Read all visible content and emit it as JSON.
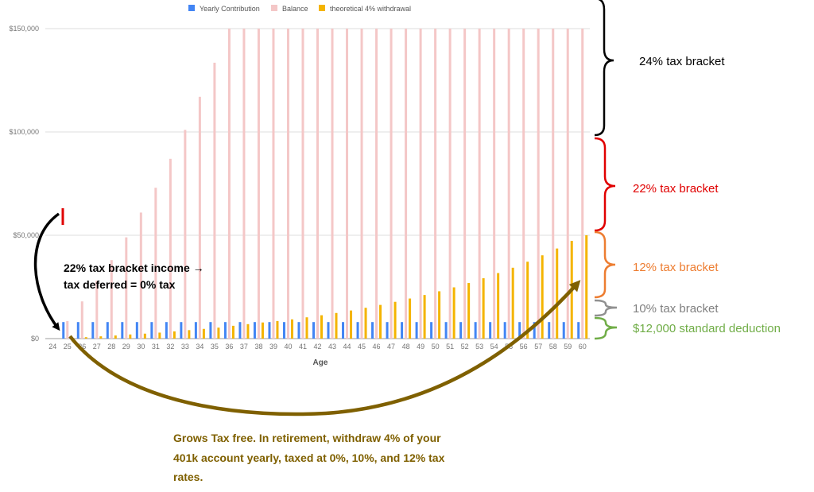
{
  "chart_data": {
    "type": "bar",
    "xlabel": "Age",
    "ylabel": "",
    "ylim": [
      0,
      150000
    ],
    "yticks": [
      0,
      50000,
      100000,
      150000
    ],
    "ytick_labels": [
      "$0",
      "$50,000",
      "$100,000",
      "$150,000"
    ],
    "grid": true,
    "legend_position": "top",
    "categories": [
      "24",
      "25",
      "26",
      "27",
      "28",
      "29",
      "30",
      "31",
      "32",
      "33",
      "34",
      "35",
      "36",
      "37",
      "38",
      "39",
      "40",
      "41",
      "42",
      "43",
      "44",
      "45",
      "46",
      "47",
      "48",
      "49",
      "50",
      "51",
      "52",
      "53",
      "54",
      "55",
      "56",
      "57",
      "58",
      "59",
      "60"
    ],
    "series": [
      {
        "name": "Yearly Contribution",
        "color": "#4285f4",
        "values": [
          0,
          8000,
          8000,
          8000,
          8000,
          8000,
          8000,
          8000,
          8000,
          8000,
          8000,
          8000,
          8000,
          8000,
          8000,
          8000,
          8000,
          8000,
          8000,
          8000,
          8000,
          8000,
          8000,
          8000,
          8000,
          8000,
          8000,
          8000,
          8000,
          8000,
          8000,
          8000,
          8000,
          8000,
          8000,
          8000,
          8000
        ]
      },
      {
        "name": "Balance",
        "color": "#f4c7c7",
        "values": [
          0,
          8500,
          18000,
          28000,
          38000,
          49000,
          61000,
          73000,
          87000,
          101000,
          117000,
          133500,
          150000,
          150000,
          150000,
          150000,
          150000,
          150000,
          150000,
          150000,
          150000,
          150000,
          150000,
          150000,
          150000,
          150000,
          150000,
          150000,
          150000,
          150000,
          150000,
          150000,
          150000,
          150000,
          150000,
          150000,
          150000
        ]
      },
      {
        "name": "theoretical 4% withdrawal",
        "color": "#f4b400",
        "values": [
          0,
          300,
          700,
          1100,
          1500,
          2000,
          2400,
          2900,
          3500,
          4100,
          4700,
          5300,
          6200,
          7000,
          7800,
          8500,
          9300,
          10300,
          11300,
          12400,
          13600,
          14900,
          16300,
          17800,
          19400,
          21100,
          22900,
          24800,
          26900,
          29200,
          31700,
          34300,
          37200,
          40300,
          43600,
          47300,
          50000
        ]
      }
    ]
  },
  "annotations": {
    "brackets": [
      {
        "label": "24% tax bracket",
        "color": "#000000"
      },
      {
        "label": "22% tax bracket",
        "color": "#e00000"
      },
      {
        "label": "12% tax bracket",
        "color": "#ed7d31"
      },
      {
        "label": "10% tax bracket",
        "color": "#808080"
      },
      {
        "label": "$12,000 standard deduction",
        "color": "#70ad47"
      }
    ],
    "left_note_lines": [
      "22% tax bracket income →",
      "tax deferred = 0% tax"
    ],
    "bottom_note_lines": [
      "Grows Tax free. In retirement, withdraw 4% of your",
      "401k account yearly, taxed at 0%, 10%, and 12% tax",
      "rates."
    ],
    "left_arrow_color": "#000000",
    "curve_color": "#7f6000",
    "tick_mark_color": "#e00000"
  }
}
